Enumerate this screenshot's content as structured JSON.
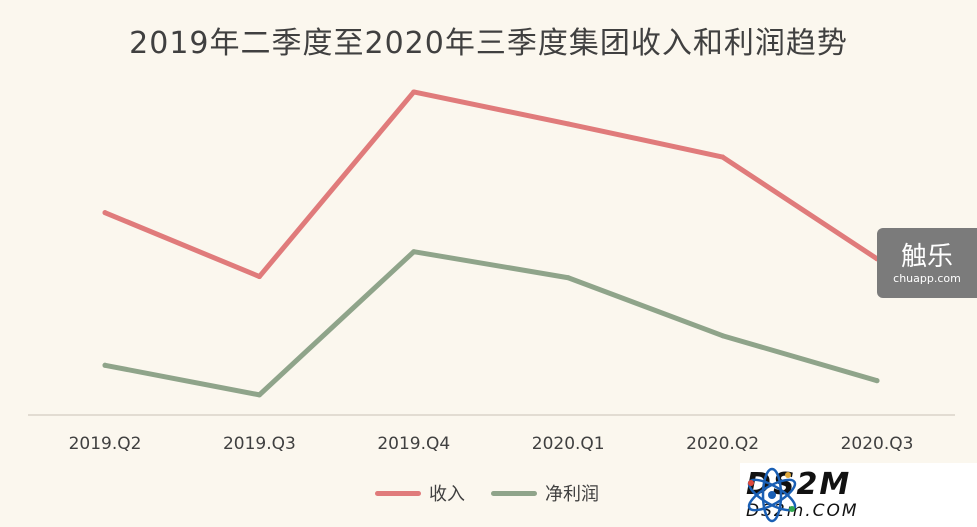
{
  "title": "2019年二季度至2020年三季度集团收入和利润趋势",
  "chart_data": {
    "type": "line",
    "title": "2019年二季度至2020年三季度集团收入和利润趋势",
    "categories": [
      "2019.Q2",
      "2019.Q3",
      "2019.Q4",
      "2020.Q1",
      "2020.Q2",
      "2020.Q3"
    ],
    "series": [
      {
        "name": "收入",
        "color": "#e07b7b",
        "values": [
          171,
          117,
          273,
          246,
          218,
          132
        ]
      },
      {
        "name": "净利润",
        "color": "#8fa48a",
        "values": [
          42,
          17,
          138,
          116,
          67,
          29
        ]
      }
    ],
    "ylim": [
      0,
      300
    ],
    "y_axis_visible": false,
    "grid": false,
    "legend_position": "bottom"
  },
  "watermarks": {
    "chuapp_cn": "触乐",
    "chuapp_url": "chuapp.com",
    "ds2m_main": "DS2M",
    "ds2m_sub": "DS2m.COM"
  }
}
